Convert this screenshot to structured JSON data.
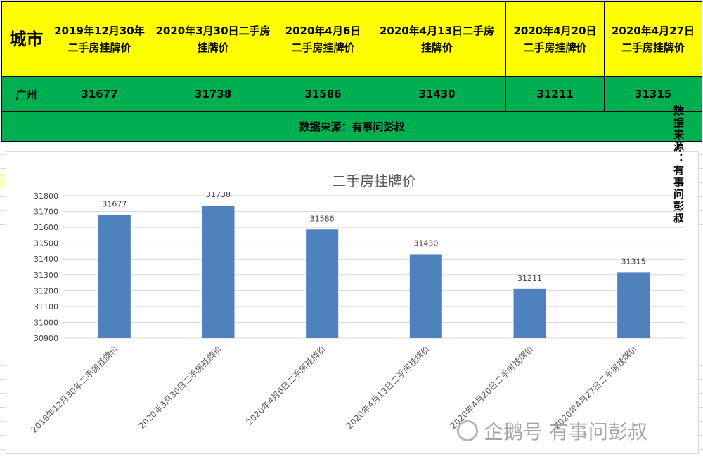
{
  "table": {
    "header_city": "城市",
    "headers": [
      "2019年12月30年二手房挂牌价",
      "2020年3月30日二手房挂牌价",
      "2020年4月6日二手房挂牌价",
      "2020年4月13日二手房挂牌价",
      "2020年4月20日二手房挂牌价",
      "2020年4月27日二手房挂牌价"
    ],
    "header_lines": [
      [
        "2019年12月30年",
        "二手房挂牌价"
      ],
      [
        "2020年3月30日二手房",
        "挂牌价"
      ],
      [
        "2020年4月6日",
        "二手房挂牌价"
      ],
      [
        "2020年4月13日二手房",
        "挂牌价"
      ],
      [
        "2020年4月20日",
        "二手房挂牌价"
      ],
      [
        "2020年4月27日",
        "二手房挂牌价"
      ]
    ],
    "city": "广州",
    "values": [
      "31677",
      "31738",
      "31586",
      "31430",
      "31211",
      "31315"
    ],
    "source": "数据来源：有事问彭叔"
  },
  "side_note": "数据来源：有事问彭叔",
  "watermark": "企鹅号 有事问彭叔",
  "colors": {
    "header_bg": "#ffff00",
    "row_bg": "#00b050",
    "bar": "#4f81bd"
  },
  "chart_data": {
    "type": "bar",
    "title": "二手房挂牌价",
    "categories": [
      "2019年12月30年二手房挂牌价",
      "2020年3月30日二手房挂牌价",
      "2020年4月6日二手房挂牌价",
      "2020年4月13日二手房挂牌价",
      "2020年4月20日二手房挂牌价",
      "2020年4月27日二手房挂牌价"
    ],
    "values": [
      31677,
      31738,
      31586,
      31430,
      31211,
      31315
    ],
    "ylim": [
      30900,
      31800
    ],
    "yticks": [
      30900,
      31000,
      31100,
      31200,
      31300,
      31400,
      31500,
      31600,
      31700,
      31800
    ],
    "grid": true,
    "data_labels": true,
    "legend": "none"
  }
}
